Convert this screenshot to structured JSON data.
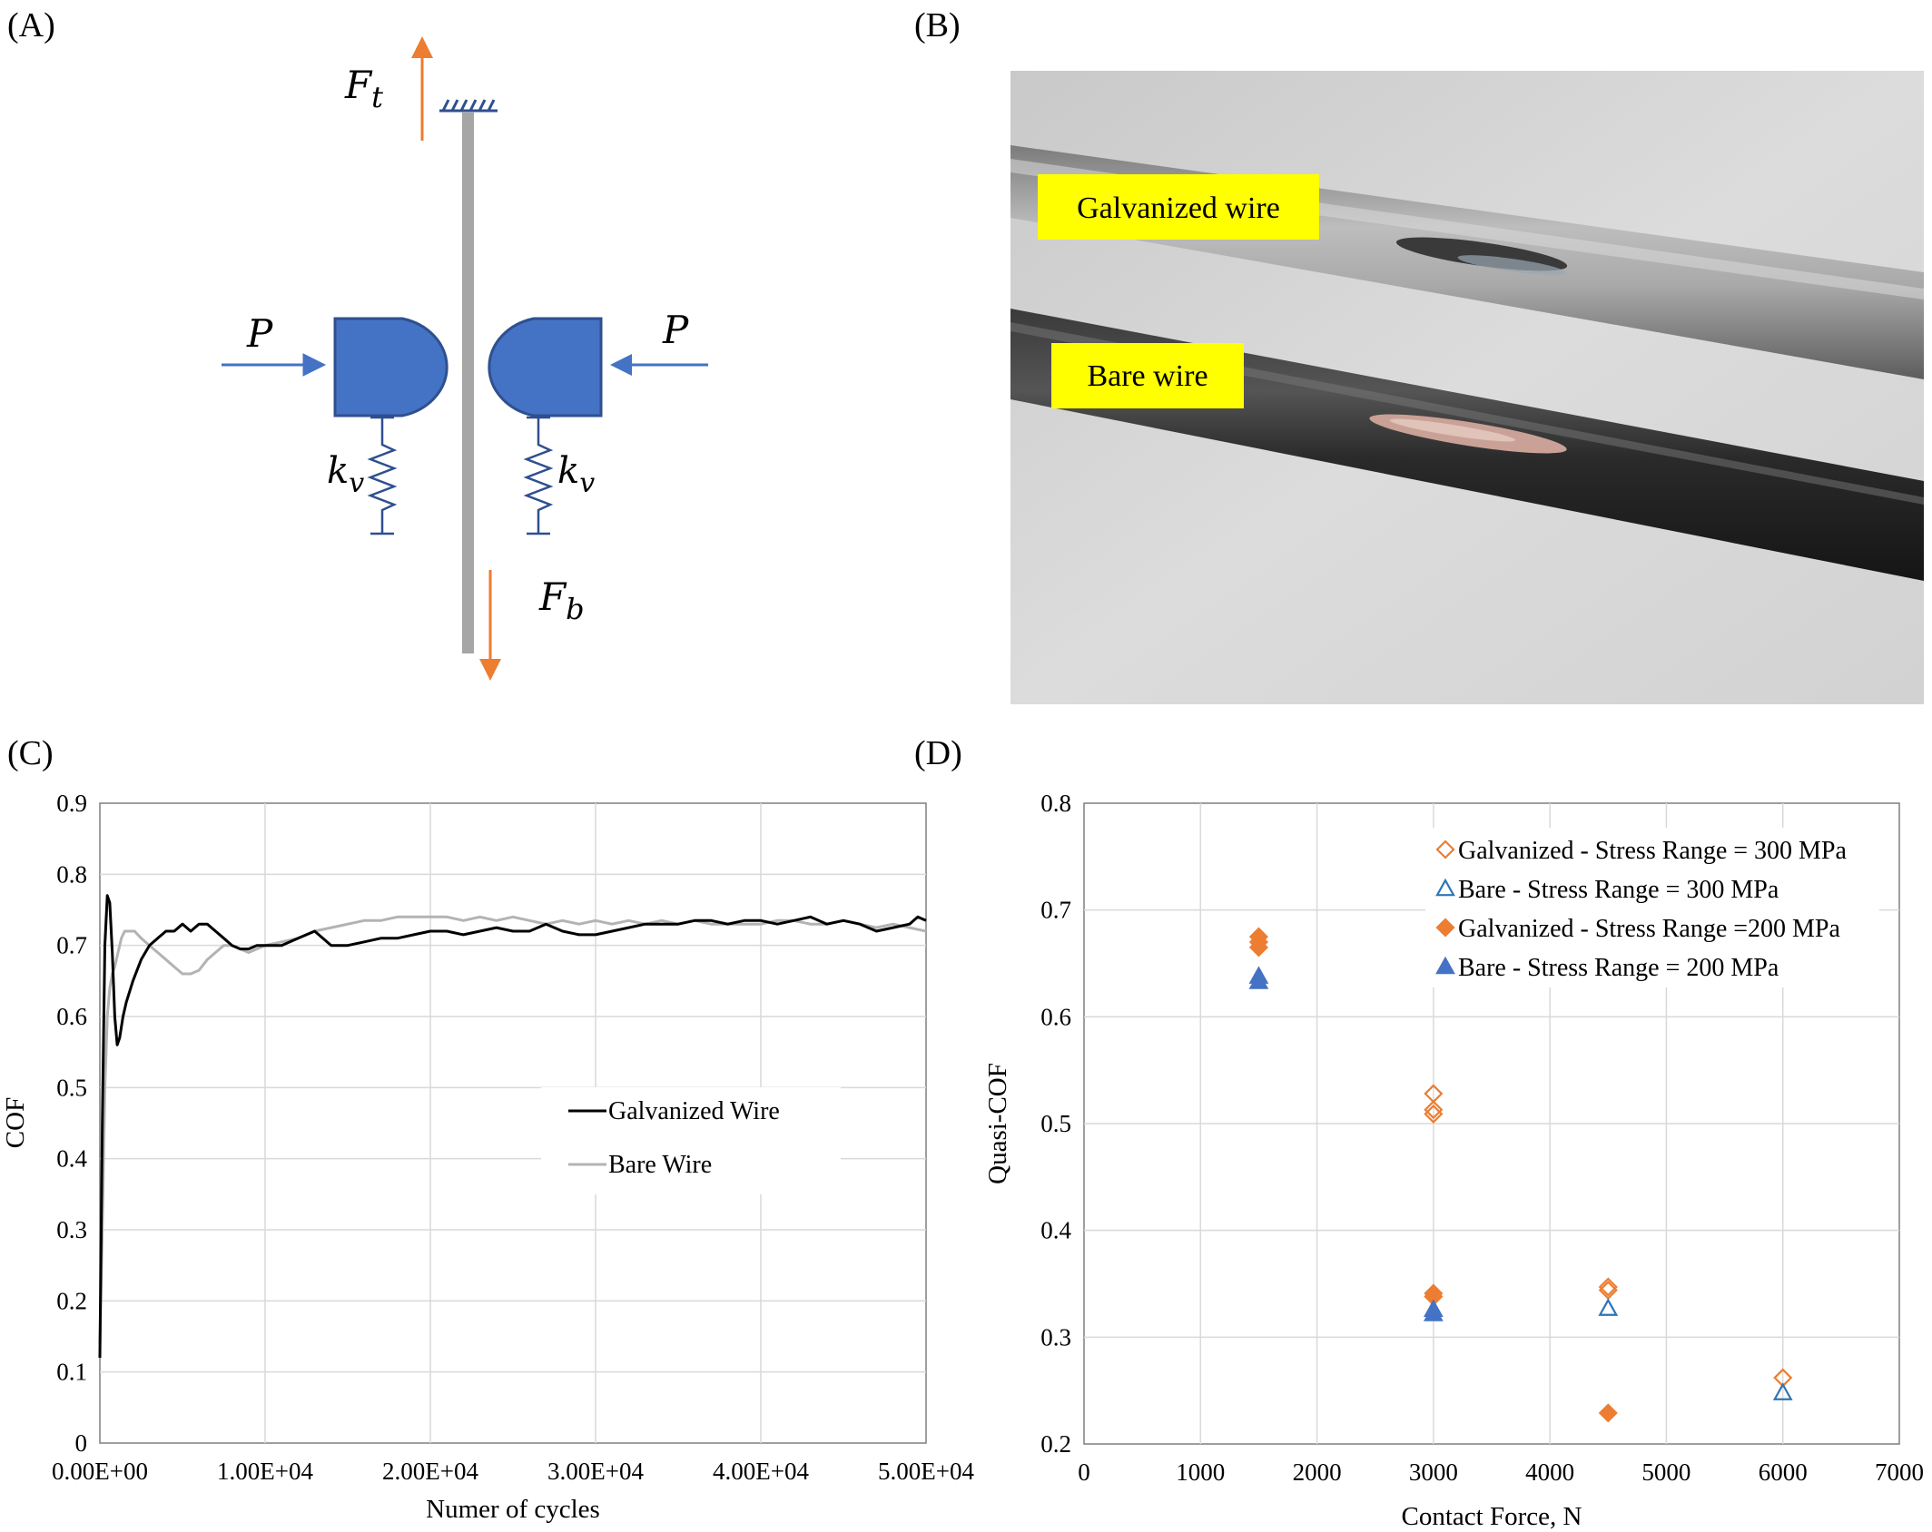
{
  "panels": {
    "A": {
      "label": "(A)",
      "symbols": {
        "Ft_main": "F",
        "Ft_sub": "t",
        "Fb_main": "F",
        "Fb_sub": "b",
        "P_left": "P",
        "P_right": "P",
        "kv_left_main": "k",
        "kv_left_sub": "v",
        "kv_right_main": "k",
        "kv_right_sub": "v"
      },
      "colors": {
        "pad": "#4472c4",
        "pad_stroke": "#2f4f8f",
        "wire": "#a6a6a6",
        "force_arrow": "#ed7d31",
        "spring": "#2f4f8f"
      }
    },
    "B": {
      "label": "(B)",
      "labels": {
        "galvanized": "Galvanized wire",
        "bare": "Bare wire"
      },
      "colors": {
        "label_bg": "#ffff00"
      }
    },
    "C": {
      "label": "(C)"
    },
    "D": {
      "label": "(D)"
    }
  },
  "chart_data": [
    {
      "panel": "C",
      "type": "line",
      "xlabel": "Numer of cycles",
      "ylabel": "COF",
      "xlim": [
        0,
        50000
      ],
      "ylim": [
        0,
        0.9
      ],
      "x_ticks": [
        0,
        10000,
        20000,
        30000,
        40000,
        50000
      ],
      "x_tick_labels": [
        "0.00E+00",
        "1.00E+04",
        "2.00E+04",
        "3.00E+04",
        "4.00E+04",
        "5.00E+04"
      ],
      "y_ticks": [
        0,
        0.1,
        0.2,
        0.3,
        0.4,
        0.5,
        0.6,
        0.7,
        0.8,
        0.9
      ],
      "y_tick_labels": [
        "0",
        "0.1",
        "0.2",
        "0.3",
        "0.4",
        "0.5",
        "0.6",
        "0.7",
        "0.8",
        "0.9"
      ],
      "grid": true,
      "legend_position": "center-right",
      "series": [
        {
          "name": "Galvanized Wire",
          "color": "#000000",
          "x": [
            0,
            150,
            300,
            450,
            600,
            750,
            900,
            1050,
            1200,
            1400,
            1600,
            2000,
            2500,
            3000,
            3500,
            4000,
            4500,
            5000,
            5500,
            6000,
            6500,
            7000,
            7500,
            8000,
            8500,
            9000,
            9500,
            10000,
            11000,
            12000,
            13000,
            14000,
            15000,
            16000,
            17000,
            18000,
            19000,
            20000,
            21000,
            22000,
            23000,
            24000,
            25000,
            26000,
            27000,
            28000,
            29000,
            30000,
            31000,
            32000,
            33000,
            34000,
            35000,
            36000,
            37000,
            38000,
            39000,
            40000,
            41000,
            42000,
            43000,
            44000,
            45000,
            46000,
            47000,
            48000,
            49000,
            49500,
            50000
          ],
          "y": [
            0.12,
            0.45,
            0.7,
            0.77,
            0.76,
            0.69,
            0.6,
            0.56,
            0.57,
            0.6,
            0.62,
            0.65,
            0.68,
            0.7,
            0.71,
            0.72,
            0.72,
            0.73,
            0.72,
            0.73,
            0.73,
            0.72,
            0.71,
            0.7,
            0.695,
            0.695,
            0.7,
            0.7,
            0.7,
            0.71,
            0.72,
            0.7,
            0.7,
            0.705,
            0.71,
            0.71,
            0.715,
            0.72,
            0.72,
            0.715,
            0.72,
            0.725,
            0.72,
            0.72,
            0.73,
            0.72,
            0.715,
            0.715,
            0.72,
            0.725,
            0.73,
            0.73,
            0.73,
            0.735,
            0.735,
            0.73,
            0.735,
            0.735,
            0.73,
            0.735,
            0.74,
            0.73,
            0.735,
            0.73,
            0.72,
            0.725,
            0.73,
            0.74,
            0.735
          ]
        },
        {
          "name": "Bare Wire",
          "color": "#b3b3b3",
          "x": [
            0,
            150,
            300,
            450,
            600,
            750,
            900,
            1100,
            1300,
            1500,
            1800,
            2100,
            2500,
            3000,
            3500,
            4000,
            4500,
            5000,
            5500,
            6000,
            6500,
            7000,
            7500,
            8000,
            8500,
            9000,
            9500,
            10000,
            11000,
            12000,
            13000,
            14000,
            15000,
            16000,
            17000,
            18000,
            19000,
            20000,
            21000,
            22000,
            23000,
            24000,
            25000,
            26000,
            27000,
            28000,
            29000,
            30000,
            31000,
            32000,
            33000,
            34000,
            35000,
            36000,
            37000,
            38000,
            39000,
            40000,
            41000,
            42000,
            43000,
            44000,
            45000,
            46000,
            47000,
            48000,
            49000,
            50000
          ],
          "y": [
            0.14,
            0.3,
            0.5,
            0.6,
            0.64,
            0.66,
            0.67,
            0.69,
            0.71,
            0.72,
            0.72,
            0.72,
            0.71,
            0.7,
            0.69,
            0.68,
            0.67,
            0.66,
            0.66,
            0.665,
            0.68,
            0.69,
            0.7,
            0.7,
            0.695,
            0.69,
            0.695,
            0.7,
            0.705,
            0.71,
            0.72,
            0.725,
            0.73,
            0.735,
            0.735,
            0.74,
            0.74,
            0.74,
            0.74,
            0.735,
            0.74,
            0.735,
            0.74,
            0.735,
            0.73,
            0.735,
            0.73,
            0.735,
            0.73,
            0.735,
            0.73,
            0.735,
            0.73,
            0.735,
            0.73,
            0.73,
            0.73,
            0.73,
            0.735,
            0.735,
            0.73,
            0.73,
            0.735,
            0.73,
            0.725,
            0.73,
            0.725,
            0.72
          ]
        }
      ]
    },
    {
      "panel": "D",
      "type": "scatter",
      "xlabel": "Contact Force, N",
      "ylabel": "Quasi-COF",
      "xlim": [
        0,
        7000
      ],
      "ylim": [
        0.2,
        0.8
      ],
      "x_ticks": [
        0,
        1000,
        2000,
        3000,
        4000,
        5000,
        6000,
        7000
      ],
      "x_tick_labels": [
        "0",
        "1000",
        "2000",
        "3000",
        "4000",
        "5000",
        "6000",
        "7000"
      ],
      "y_ticks": [
        0.2,
        0.3,
        0.4,
        0.5,
        0.6,
        0.7,
        0.8
      ],
      "y_tick_labels": [
        "0.2",
        "0.3",
        "0.4",
        "0.5",
        "0.6",
        "0.7",
        "0.8"
      ],
      "grid": true,
      "legend_position": "top-right",
      "series": [
        {
          "name": "Galvanized - Stress Range = 300 MPa",
          "marker": "diamond-open",
          "color": "#ed7d31",
          "x": [
            3000,
            3000,
            3000,
            4500,
            4500,
            6000
          ],
          "y": [
            0.528,
            0.513,
            0.509,
            0.347,
            0.344,
            0.262
          ]
        },
        {
          "name": "Bare - Stress Range = 300 MPa",
          "marker": "triangle-open",
          "color": "#2e75b6",
          "x": [
            4500,
            6000
          ],
          "y": [
            0.327,
            0.248
          ]
        },
        {
          "name": "Galvanized - Stress Range =200 MPa",
          "marker": "diamond-filled",
          "color": "#ed7d31",
          "x": [
            1500,
            1500,
            1500,
            3000,
            3000,
            4500
          ],
          "y": [
            0.675,
            0.67,
            0.665,
            0.341,
            0.338,
            0.229
          ]
        },
        {
          "name": "Bare - Stress Range = 200 MPa",
          "marker": "triangle-filled",
          "color": "#4472c4",
          "x": [
            1500,
            1500,
            3000,
            3000
          ],
          "y": [
            0.638,
            0.633,
            0.326,
            0.322
          ]
        }
      ]
    }
  ]
}
